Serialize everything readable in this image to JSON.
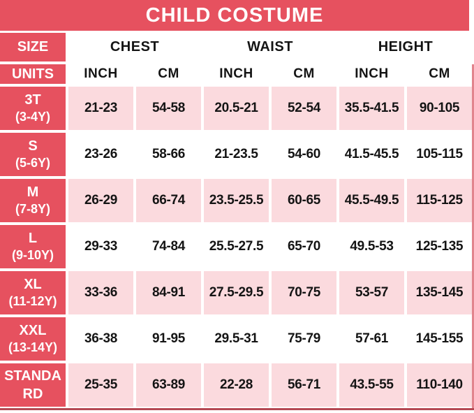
{
  "colors": {
    "banner_red": "#e6515f",
    "row_pink": "#fbdade",
    "text_black": "#141414",
    "text_white": "#ffffff",
    "bottom_border": "#b54853",
    "right_border": "#e2848d"
  },
  "chart_data": {
    "type": "table",
    "title": "CHILD COSTUME",
    "header": {
      "size_label": "SIZE",
      "units_label": "UNITS",
      "groups": [
        "CHEST",
        "WAIST",
        "HEIGHT"
      ],
      "unit_columns": [
        "INCH",
        "CM",
        "INCH",
        "CM",
        "INCH",
        "CM"
      ]
    },
    "rows": [
      {
        "size": "3T",
        "age": "(3-4Y)",
        "shaded": true,
        "values": [
          "21-23",
          "54-58",
          "20.5-21",
          "52-54",
          "35.5-41.5",
          "90-105"
        ]
      },
      {
        "size": "S",
        "age": "(5-6Y)",
        "shaded": false,
        "values": [
          "23-26",
          "58-66",
          "21-23.5",
          "54-60",
          "41.5-45.5",
          "105-115"
        ]
      },
      {
        "size": "M",
        "age": "(7-8Y)",
        "shaded": true,
        "values": [
          "26-29",
          "66-74",
          "23.5-25.5",
          "60-65",
          "45.5-49.5",
          "115-125"
        ]
      },
      {
        "size": "L",
        "age": "(9-10Y)",
        "shaded": false,
        "values": [
          "29-33",
          "74-84",
          "25.5-27.5",
          "65-70",
          "49.5-53",
          "125-135"
        ]
      },
      {
        "size": "XL",
        "age": "(11-12Y)",
        "shaded": true,
        "values": [
          "33-36",
          "84-91",
          "27.5-29.5",
          "70-75",
          "53-57",
          "135-145"
        ]
      },
      {
        "size": "XXL",
        "age": "(13-14Y)",
        "shaded": false,
        "values": [
          "36-38",
          "91-95",
          "29.5-31",
          "75-79",
          "57-61",
          "145-155"
        ]
      },
      {
        "size": "STANDARD",
        "age": "",
        "shaded": true,
        "values": [
          "25-35",
          "63-89",
          "22-28",
          "56-71",
          "43.5-55",
          "110-140"
        ]
      }
    ]
  }
}
